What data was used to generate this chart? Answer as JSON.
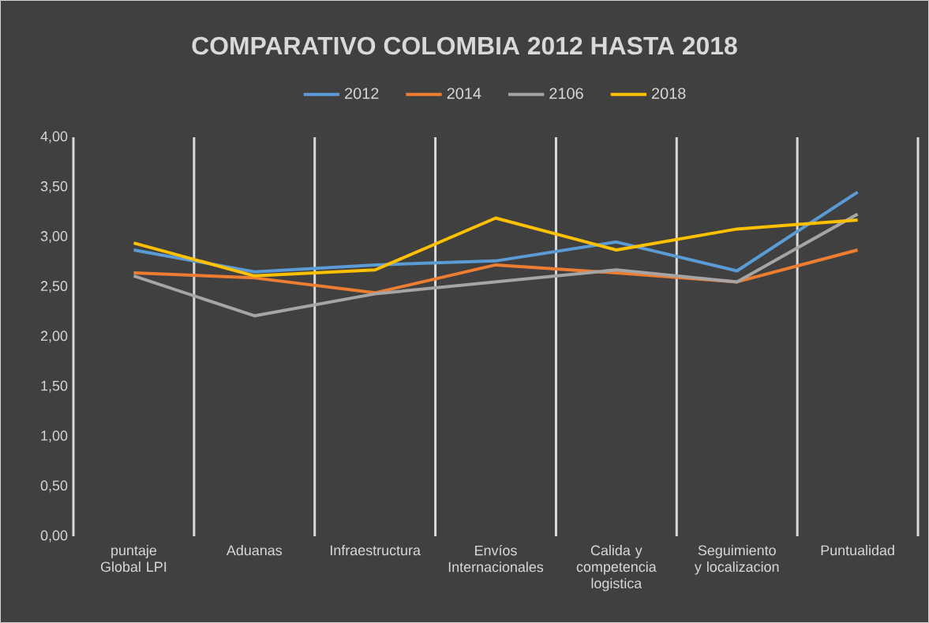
{
  "chart_data": {
    "type": "line",
    "title": "COMPARATIVO COLOMBIA 2012 HASTA 2018",
    "categories": [
      "puntaje Global LPI",
      "Aduanas",
      "Infraestructura",
      "Envíos Internacionales",
      "Calida y competencia logistica",
      "Seguimiento y localizacion",
      "Puntualidad"
    ],
    "series": [
      {
        "name": "2012",
        "color": "#5b9bd5",
        "values": [
          2.87,
          2.65,
          2.72,
          2.76,
          2.95,
          2.66,
          3.45
        ]
      },
      {
        "name": "2014",
        "color": "#ed7d31",
        "values": [
          2.64,
          2.59,
          2.44,
          2.72,
          2.64,
          2.55,
          2.87
        ]
      },
      {
        "name": "2106",
        "color": "#a5a5a5",
        "values": [
          2.61,
          2.21,
          2.43,
          2.55,
          2.67,
          2.55,
          3.23
        ]
      },
      {
        "name": "2018",
        "color": "#ffc000",
        "values": [
          2.94,
          2.61,
          2.67,
          3.19,
          2.87,
          3.08,
          3.17
        ]
      }
    ],
    "ylim": [
      0,
      4
    ],
    "yticks": [
      {
        "value": 0,
        "label": "0,00"
      },
      {
        "value": 0.5,
        "label": "0,50"
      },
      {
        "value": 1,
        "label": "1,00"
      },
      {
        "value": 1.5,
        "label": "1,50"
      },
      {
        "value": 2,
        "label": "2,00"
      },
      {
        "value": 2.5,
        "label": "2,50"
      },
      {
        "value": 3,
        "label": "3,00"
      },
      {
        "value": 3.5,
        "label": "3,50"
      },
      {
        "value": 4,
        "label": "4,00"
      }
    ],
    "grid": "x",
    "legend": "top",
    "marker": "none",
    "line_style": "solid"
  }
}
